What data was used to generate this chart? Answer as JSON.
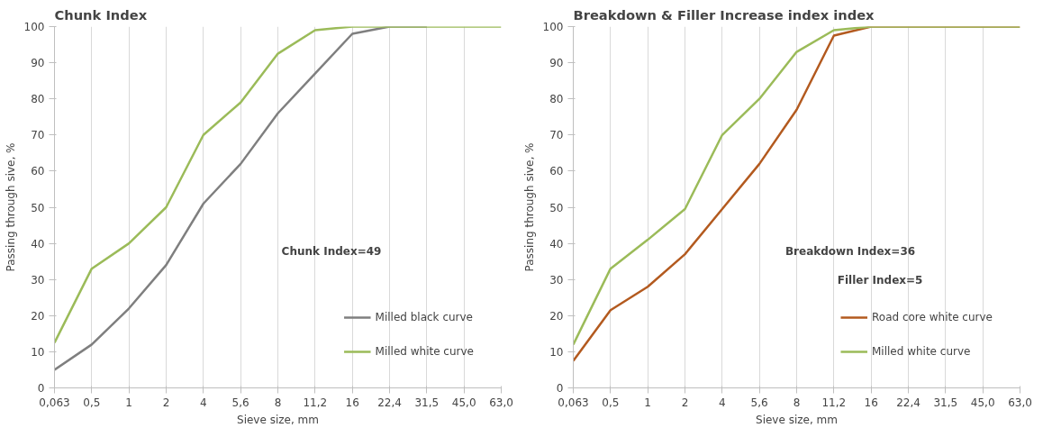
{
  "chart_data": [
    {
      "type": "line",
      "title": "Chunk Index",
      "xlabel": "Sieve size, mm",
      "ylabel": "Passing through sive, %",
      "categories": [
        "0,063",
        "0,5",
        "1",
        "2",
        "4",
        "5,6",
        "8",
        "11,2",
        "16",
        "22,4",
        "31,5",
        "45,0",
        "63,0"
      ],
      "series": [
        {
          "name": "Milled black curve",
          "color": "#7f7f7f",
          "values": [
            5,
            12,
            22,
            34,
            51,
            62,
            76,
            87,
            98,
            100,
            100,
            null,
            null
          ]
        },
        {
          "name": "Milled white curve",
          "color": "#9bbb59",
          "values": [
            12.5,
            33,
            40,
            50,
            70,
            79,
            92.5,
            99,
            100,
            100,
            100,
            100,
            100
          ]
        }
      ],
      "ylim": [
        0,
        100
      ],
      "yticks": [
        0,
        10,
        20,
        30,
        40,
        50,
        60,
        70,
        80,
        90,
        100
      ],
      "grid": "x",
      "legend": "bottom right",
      "marker": "none",
      "line_style": "solid",
      "annotations": [
        "Chunk Index=49"
      ]
    },
    {
      "type": "line",
      "title": "Breakdown & Filler Increase index index",
      "xlabel": "Sieve size, mm",
      "ylabel": "Passing through sive, %",
      "categories": [
        "0,063",
        "0,5",
        "1",
        "2",
        "4",
        "5,6",
        "8",
        "11,2",
        "16",
        "22,4",
        "31,5",
        "45,0",
        "63,0"
      ],
      "series": [
        {
          "name": "Road core white curve",
          "color": "#b35a1f",
          "values": [
            7.5,
            21.5,
            28,
            37,
            49.5,
            62,
            77,
            97.5,
            100,
            100,
            100,
            100,
            100
          ]
        },
        {
          "name": "Milled white curve",
          "color": "#9bbb59",
          "values": [
            12,
            33,
            41,
            49.5,
            70,
            80,
            93,
            99,
            100,
            100,
            100,
            100,
            100
          ]
        }
      ],
      "ylim": [
        0,
        100
      ],
      "yticks": [
        0,
        10,
        20,
        30,
        40,
        50,
        60,
        70,
        80,
        90,
        100
      ],
      "grid": "x",
      "legend": "bottom right",
      "marker": "none",
      "line_style": "solid",
      "annotations": [
        "Breakdown Index=36",
        "Filler Index=5"
      ]
    }
  ]
}
